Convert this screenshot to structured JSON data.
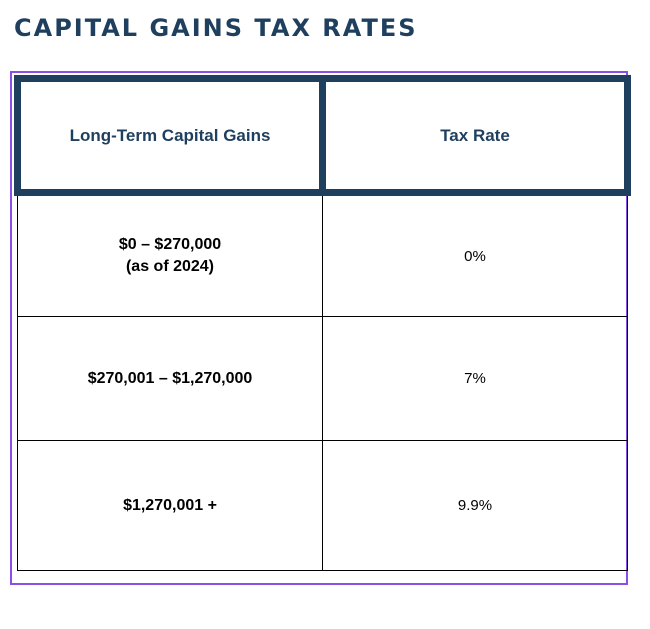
{
  "title": "CAPITAL GAINS TAX RATES",
  "table": {
    "headers": [
      "Long-Term Capital Gains",
      "Tax Rate"
    ],
    "rows": [
      {
        "bracket": "$0 – $270,000",
        "note": "(as of 2024)",
        "rate": "0%"
      },
      {
        "bracket": "$270,001 – $1,270,000",
        "note": "",
        "rate": "7%"
      },
      {
        "bracket": "$1,270,001 +",
        "note": "",
        "rate": "9.9%"
      }
    ]
  },
  "colors": {
    "title": "#1f3f5e",
    "header_border": "#1f3f5e",
    "frame_border": "#8a4fe8",
    "cell_border": "#000000"
  }
}
